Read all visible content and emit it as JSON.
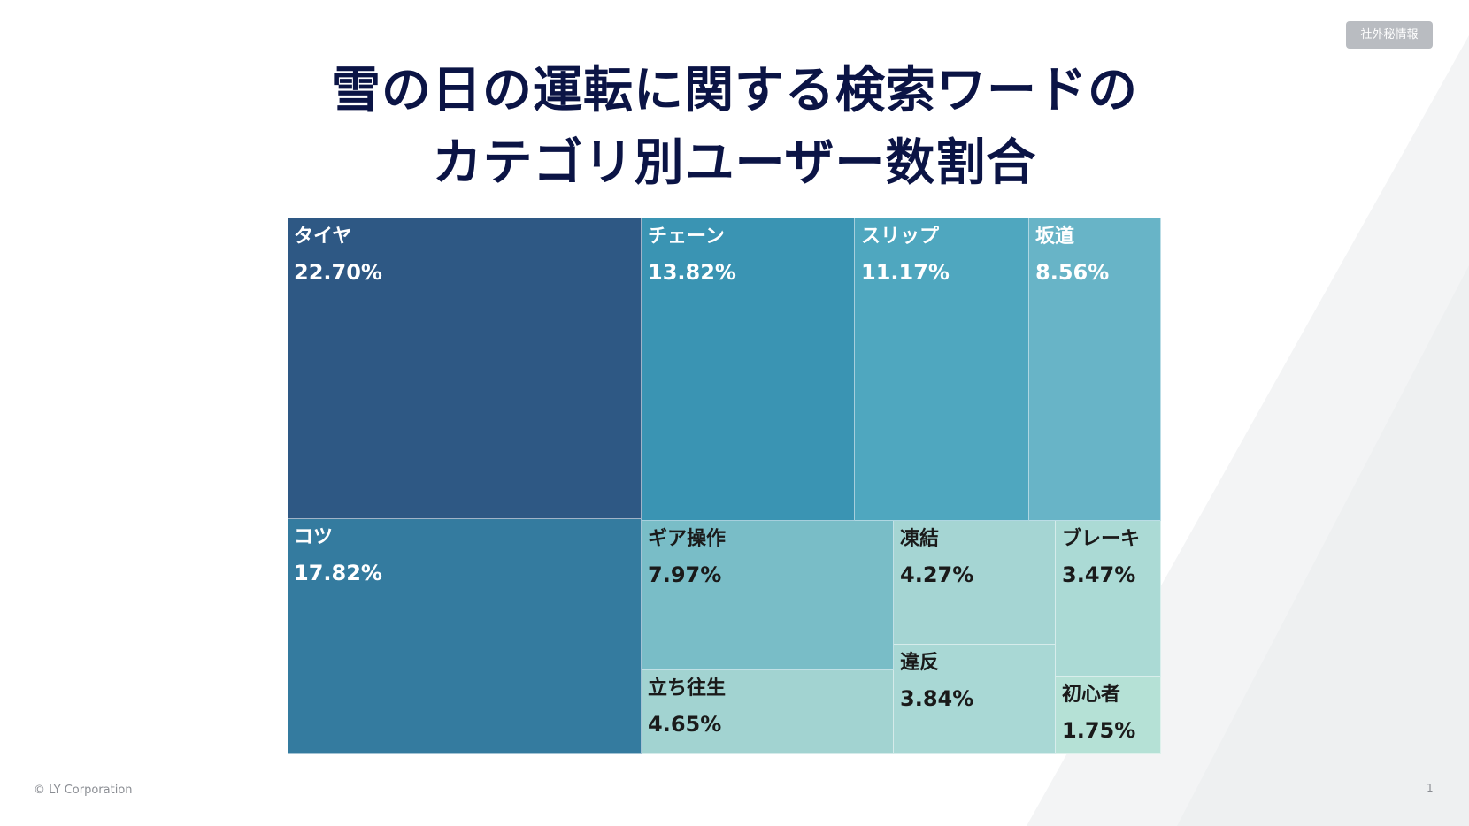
{
  "badge": "社外秘情報",
  "title": {
    "line1": "雪の日の運転に関する検索ワードの",
    "line2": "カテゴリ別ユーザー数割合"
  },
  "chart_data": {
    "type": "treemap",
    "title": "雪の日の運転に関する検索ワードのカテゴリ別ユーザー数割合",
    "items": [
      {
        "label": "タイヤ",
        "value": 22.7,
        "display": "22.70%",
        "color": "#2e5884"
      },
      {
        "label": "コツ",
        "value": 17.82,
        "display": "17.82%",
        "color": "#347b9f"
      },
      {
        "label": "チェーン",
        "value": 13.82,
        "display": "13.82%",
        "color": "#3a94b3"
      },
      {
        "label": "スリップ",
        "value": 11.17,
        "display": "11.17%",
        "color": "#4fa7bf"
      },
      {
        "label": "坂道",
        "value": 8.56,
        "display": "8.56%",
        "color": "#68b4c7"
      },
      {
        "label": "ギア操作",
        "value": 7.97,
        "display": "7.97%",
        "color": "#79bdc7"
      },
      {
        "label": "立ち往生",
        "value": 4.65,
        "display": "4.65%",
        "color": "#a2d3d1"
      },
      {
        "label": "凍結",
        "value": 4.27,
        "display": "4.27%",
        "color": "#a5d5d3"
      },
      {
        "label": "違反",
        "value": 3.84,
        "display": "3.84%",
        "color": "#a9d8d5"
      },
      {
        "label": "ブレーキ",
        "value": 3.47,
        "display": "3.47%",
        "color": "#abdad5"
      },
      {
        "label": "初心者",
        "value": 1.75,
        "display": "1.75%",
        "color": "#b5e1d6"
      }
    ]
  },
  "footer": {
    "copyright": "© LY Corporation",
    "page": "1"
  }
}
